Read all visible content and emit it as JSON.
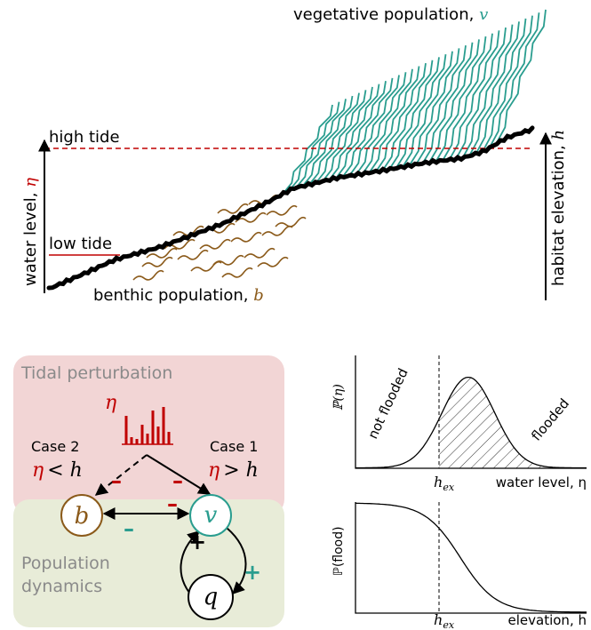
{
  "top_panel": {
    "vegetation_label": "vegetative population, ",
    "vegetation_symbol": "v",
    "high_tide": "high tide",
    "low_tide": "low tide",
    "water_level_label": "water level, ",
    "water_level_symbol": "η",
    "benthic_label": "benthic population, ",
    "benthic_symbol": "b",
    "elevation_label": "habitat elevation, ",
    "elevation_symbol": "h"
  },
  "schematic": {
    "tidal_box": "Tidal perturbation",
    "tidal_symbol": "η",
    "case_2": {
      "title": "Case 2",
      "condition": [
        "η",
        "< h"
      ]
    },
    "case_1": {
      "title": "Case 1",
      "condition": [
        "η",
        "> h"
      ]
    },
    "nodes": [
      {
        "label": "b"
      },
      {
        "label": "v"
      },
      {
        "label": "q"
      }
    ],
    "signs": [
      "–",
      "–",
      "–",
      "+",
      "+"
    ],
    "population_box": [
      "Population",
      "dynamics"
    ]
  },
  "flood_plots": {
    "top": {
      "y_label": "ℙ(η)",
      "left_region": "not flooded",
      "right_region": "flooded",
      "threshold": {
        "base": "h",
        "subscript": "ex"
      },
      "x_label": "water level, η"
    },
    "bottom": {
      "y_label": "ℙ(flood)",
      "threshold": {
        "base": "h",
        "subscript": "ex"
      },
      "x_label": "elevation, h"
    }
  }
}
